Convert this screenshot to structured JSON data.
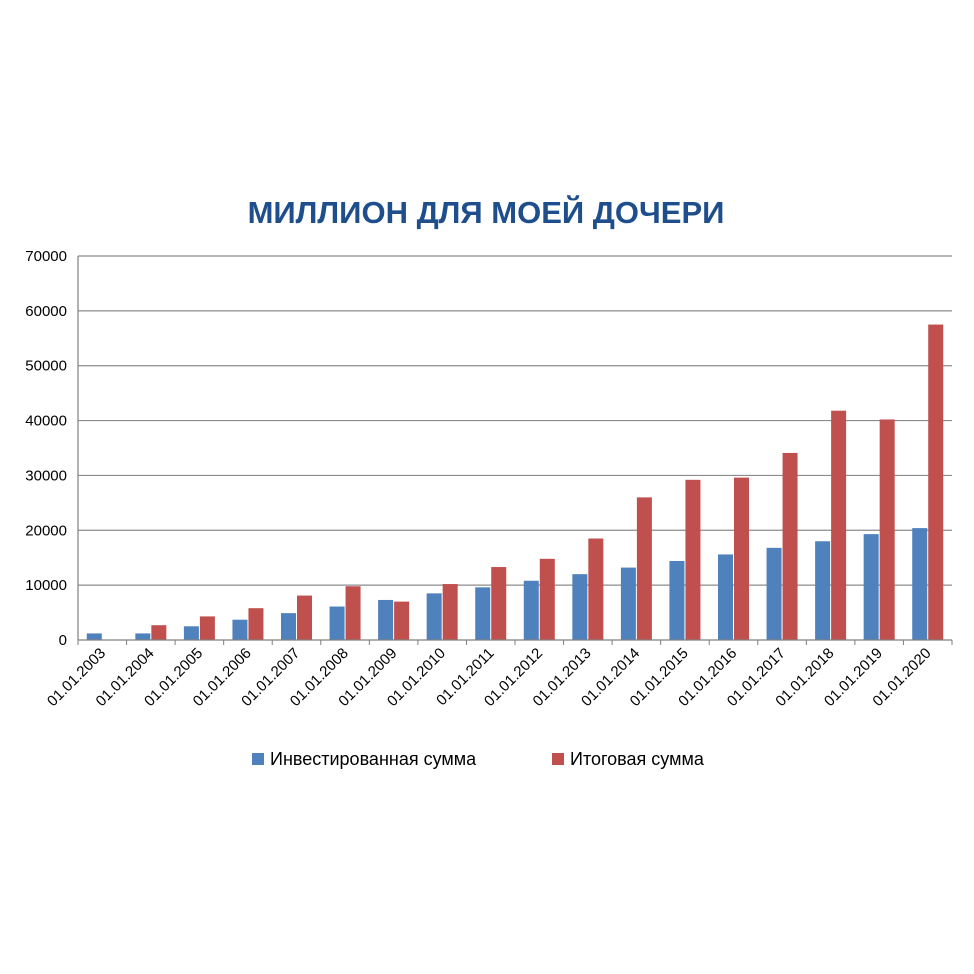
{
  "chart_data": {
    "type": "bar",
    "title": "МИЛЛИОН ДЛЯ МОЕЙ ДОЧЕРИ",
    "xlabel": "",
    "ylabel": "",
    "ylim": [
      0,
      70000
    ],
    "yticks": [
      "0",
      "10000",
      "20000",
      "30000",
      "40000",
      "50000",
      "60000",
      "70000"
    ],
    "grid": true,
    "legend_position": "bottom",
    "categories": [
      "01.01.2003",
      "01.01.2004",
      "01.01.2005",
      "01.01.2006",
      "01.01.2007",
      "01.01.2008",
      "01.01.2009",
      "01.01.2010",
      "01.01.2011",
      "01.01.2012",
      "01.01.2013",
      "01.01.2014",
      "01.01.2015",
      "01.01.2016",
      "01.01.2017",
      "01.01.2018",
      "01.01.2019",
      "01.01.2020"
    ],
    "series": [
      {
        "name": "Инвестированная сумма",
        "color": "#4f81bd",
        "values": [
          1200,
          1200,
          2500,
          3700,
          4900,
          6100,
          7300,
          8500,
          9600,
          10800,
          12000,
          13200,
          14400,
          15600,
          16800,
          18000,
          19300,
          20400
        ]
      },
      {
        "name": "Итоговая сумма",
        "color": "#c0504d",
        "values": [
          0,
          2700,
          4300,
          5800,
          8100,
          9800,
          7000,
          10200,
          13300,
          14800,
          18500,
          26000,
          29200,
          29600,
          34100,
          41800,
          40200,
          57500
        ]
      }
    ]
  }
}
